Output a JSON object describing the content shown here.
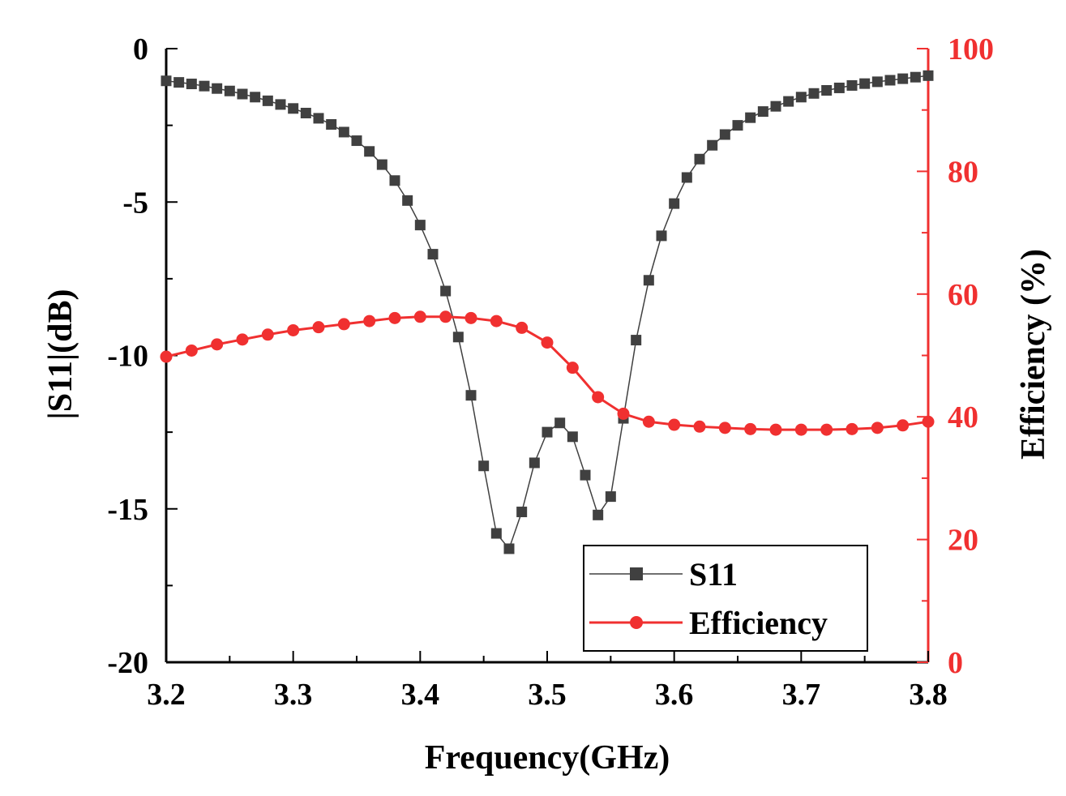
{
  "chart_data": {
    "type": "line",
    "xlabel": "Frequency(GHz)",
    "ylabel_left": "|S11|(dB)",
    "ylabel_right": "Efficiency (%)",
    "xlim": [
      3.2,
      3.8
    ],
    "ylim_left": [
      -20,
      0
    ],
    "ylim_right": [
      0,
      100
    ],
    "x_ticks": [
      "3.2",
      "3.3",
      "3.4",
      "3.5",
      "3.6",
      "3.7",
      "3.8"
    ],
    "y_left_ticks": [
      "0",
      "-5",
      "-10",
      "-15",
      "-20"
    ],
    "y_right_ticks": [
      "100",
      "80",
      "60",
      "40",
      "20",
      "0"
    ],
    "legend_position": "bottom-right",
    "grid": false,
    "colors": {
      "s11": "#404040",
      "efficiency": "#f03030",
      "right_axis": "#f03030"
    },
    "series": [
      {
        "name": "S11",
        "axis": "left",
        "marker": "square",
        "x": [
          3.2,
          3.21,
          3.22,
          3.23,
          3.24,
          3.25,
          3.26,
          3.27,
          3.28,
          3.29,
          3.3,
          3.31,
          3.32,
          3.33,
          3.34,
          3.35,
          3.36,
          3.37,
          3.38,
          3.39,
          3.4,
          3.41,
          3.42,
          3.43,
          3.44,
          3.45,
          3.46,
          3.47,
          3.48,
          3.49,
          3.5,
          3.51,
          3.52,
          3.53,
          3.54,
          3.55,
          3.56,
          3.57,
          3.58,
          3.59,
          3.6,
          3.61,
          3.62,
          3.63,
          3.64,
          3.65,
          3.66,
          3.67,
          3.68,
          3.69,
          3.7,
          3.71,
          3.72,
          3.73,
          3.74,
          3.75,
          3.76,
          3.77,
          3.78,
          3.79,
          3.8
        ],
        "values": [
          -1.05,
          -1.1,
          -1.15,
          -1.22,
          -1.3,
          -1.38,
          -1.48,
          -1.58,
          -1.7,
          -1.82,
          -1.95,
          -2.1,
          -2.27,
          -2.47,
          -2.72,
          -3.0,
          -3.35,
          -3.78,
          -4.3,
          -4.95,
          -5.75,
          -6.7,
          -7.9,
          -9.4,
          -11.3,
          -13.6,
          -15.8,
          -16.3,
          -15.1,
          -13.5,
          -12.5,
          -12.2,
          -12.65,
          -13.9,
          -15.2,
          -14.6,
          -12.05,
          -9.5,
          -7.55,
          -6.1,
          -5.05,
          -4.2,
          -3.6,
          -3.15,
          -2.8,
          -2.5,
          -2.25,
          -2.05,
          -1.88,
          -1.72,
          -1.58,
          -1.46,
          -1.36,
          -1.28,
          -1.2,
          -1.14,
          -1.08,
          -1.03,
          -0.98,
          -0.93,
          -0.88
        ]
      },
      {
        "name": "Efficiency",
        "axis": "right",
        "marker": "circle",
        "x": [
          3.2,
          3.22,
          3.24,
          3.26,
          3.28,
          3.3,
          3.32,
          3.34,
          3.36,
          3.38,
          3.4,
          3.42,
          3.44,
          3.46,
          3.48,
          3.5,
          3.52,
          3.54,
          3.56,
          3.58,
          3.6,
          3.62,
          3.64,
          3.66,
          3.68,
          3.7,
          3.72,
          3.74,
          3.76,
          3.78,
          3.8
        ],
        "values": [
          49.8,
          50.8,
          51.8,
          52.6,
          53.4,
          54.1,
          54.6,
          55.1,
          55.6,
          56.1,
          56.3,
          56.3,
          56.1,
          55.6,
          54.5,
          52.1,
          48.0,
          43.2,
          40.5,
          39.2,
          38.7,
          38.4,
          38.2,
          38.0,
          37.9,
          37.9,
          37.9,
          38.0,
          38.2,
          38.6,
          39.2
        ]
      }
    ]
  }
}
